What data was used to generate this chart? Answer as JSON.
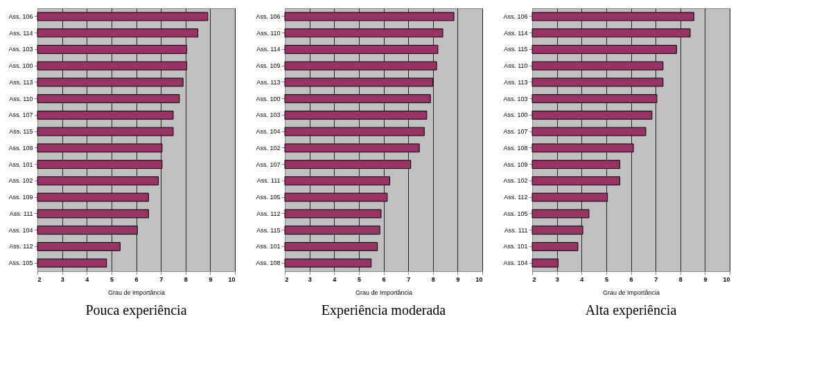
{
  "chart_data": [
    {
      "type": "bar",
      "orientation": "horizontal",
      "title": "Pouca experiência",
      "xlabel": "Grau de Importância",
      "color": "#993366",
      "grid": "x",
      "xlim": [
        2,
        10
      ],
      "xticks": [
        2,
        3,
        4,
        5,
        6,
        7,
        8,
        9,
        10
      ],
      "categories": [
        "Ass. 106",
        "Ass. 114",
        "Ass. 103",
        "Ass. 100",
        "Ass. 113",
        "Ass. 110",
        "Ass. 107",
        "Ass. 115",
        "Ass. 108",
        "Ass. 101",
        "Ass. 102",
        "Ass. 109",
        "Ass. 111",
        "Ass. 104",
        "Ass. 112",
        "Ass. 105"
      ],
      "values": [
        8.9,
        8.5,
        8.05,
        8.05,
        7.9,
        7.75,
        7.5,
        7.5,
        7.05,
        7.05,
        6.9,
        6.5,
        6.5,
        6.05,
        5.35,
        4.8
      ]
    },
    {
      "type": "bar",
      "orientation": "horizontal",
      "title": "Experiência moderada",
      "xlabel": "Grau de Importância",
      "color": "#993366",
      "grid": "x",
      "xlim": [
        2,
        10
      ],
      "xticks": [
        2,
        3,
        4,
        5,
        6,
        7,
        8,
        9,
        10
      ],
      "categories": [
        "Ass. 106",
        "Ass. 110",
        "Ass. 114",
        "Ass. 109",
        "Ass. 113",
        "Ass. 100",
        "Ass. 103",
        "Ass. 104",
        "Ass. 102",
        "Ass. 107",
        "Ass. 111",
        "Ass. 105",
        "Ass. 112",
        "Ass. 115",
        "Ass. 101",
        "Ass. 108"
      ],
      "values": [
        8.85,
        8.4,
        8.2,
        8.15,
        8.0,
        7.9,
        7.75,
        7.65,
        7.45,
        7.1,
        6.25,
        6.15,
        5.9,
        5.85,
        5.75,
        5.5
      ]
    },
    {
      "type": "bar",
      "orientation": "horizontal",
      "title": "Alta experiência",
      "xlabel": "Grau de Importância",
      "color": "#993366",
      "grid": "x",
      "xlim": [
        2,
        10
      ],
      "xticks": [
        2,
        3,
        4,
        5,
        6,
        7,
        8,
        9,
        10
      ],
      "categories": [
        "Ass. 106",
        "Ass. 114",
        "Ass. 115",
        "Ass. 110",
        "Ass. 113",
        "Ass. 103",
        "Ass. 100",
        "Ass. 107",
        "Ass. 108",
        "Ass. 109",
        "Ass. 102",
        "Ass. 112",
        "Ass. 105",
        "Ass. 111",
        "Ass. 101",
        "Ass. 104"
      ],
      "values": [
        8.55,
        8.4,
        7.85,
        7.3,
        7.3,
        7.05,
        6.85,
        6.6,
        6.1,
        5.55,
        5.55,
        5.05,
        4.3,
        4.05,
        3.85,
        3.05
      ]
    }
  ]
}
